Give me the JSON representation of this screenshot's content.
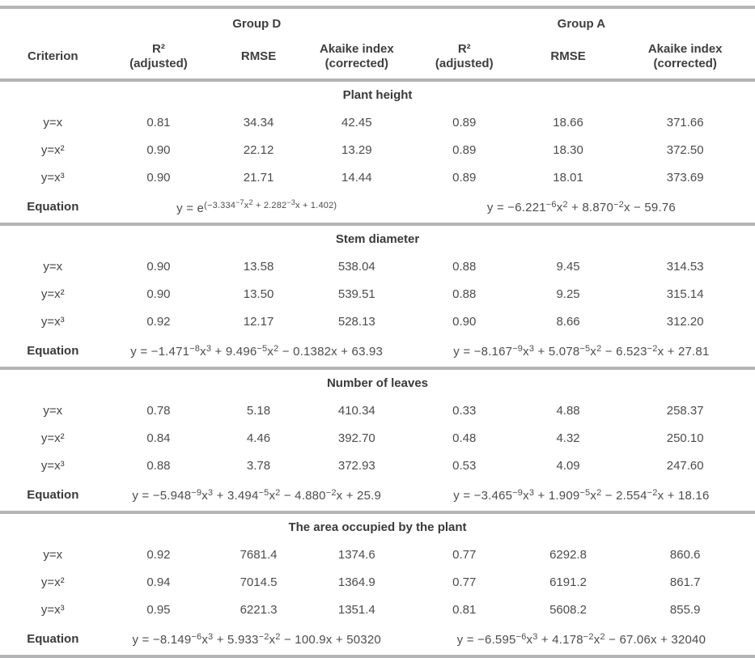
{
  "table": {
    "criterion_header": "Criterion",
    "equation_label": "Equation",
    "groups": [
      {
        "label": "Group D"
      },
      {
        "label": "Group A"
      }
    ],
    "col_headers": [
      {
        "top": "R²",
        "bottom": "(adjusted)"
      },
      {
        "top": "RMSE",
        "bottom": ""
      },
      {
        "top": "Akaike index",
        "bottom": "(corrected)"
      }
    ],
    "colors": {
      "rule": "#b2b4b6",
      "text": "#3e3e3e"
    },
    "sections": [
      {
        "title": "Plant height",
        "rows": [
          {
            "criterion": "y=x",
            "d": [
              "0.81",
              "34.34",
              "42.45"
            ],
            "a": [
              "0.89",
              "18.66",
              "371.66"
            ]
          },
          {
            "criterion": "y=x²",
            "d": [
              "0.90",
              "22.12",
              "13.29"
            ],
            "a": [
              "0.89",
              "18.30",
              "372.50"
            ]
          },
          {
            "criterion": "y=x³",
            "d": [
              "0.90",
              "21.71",
              "14.44"
            ],
            "a": [
              "0.89",
              "18.01",
              "373.69"
            ]
          }
        ],
        "equation_d": [
          [
            0,
            "y = e"
          ],
          [
            1,
            "(−3.334"
          ],
          [
            2,
            "−7"
          ],
          [
            1,
            "x"
          ],
          [
            2,
            "2"
          ],
          [
            1,
            " + 2.282"
          ],
          [
            2,
            "−3"
          ],
          [
            1,
            "x + 1.402)"
          ]
        ],
        "equation_a": [
          [
            0,
            "y = −6.221"
          ],
          [
            1,
            "−6"
          ],
          [
            0,
            "x"
          ],
          [
            1,
            "2"
          ],
          [
            0,
            " + 8.870"
          ],
          [
            1,
            "−2"
          ],
          [
            0,
            "x − 59.76"
          ]
        ]
      },
      {
        "title": "Stem diameter",
        "rows": [
          {
            "criterion": "y=x",
            "d": [
              "0.90",
              "13.58",
              "538.04"
            ],
            "a": [
              "0.88",
              "9.45",
              "314.53"
            ]
          },
          {
            "criterion": "y=x²",
            "d": [
              "0.90",
              "13.50",
              "539.51"
            ],
            "a": [
              "0.88",
              "9.25",
              "315.14"
            ]
          },
          {
            "criterion": "y=x³",
            "d": [
              "0.92",
              "12.17",
              "528.13"
            ],
            "a": [
              "0.90",
              "8.66",
              "312.20"
            ]
          }
        ],
        "equation_d": [
          [
            0,
            "y = −1.471"
          ],
          [
            1,
            "−8"
          ],
          [
            0,
            "x"
          ],
          [
            1,
            "3"
          ],
          [
            0,
            " + 9.496"
          ],
          [
            1,
            "−5"
          ],
          [
            0,
            "x"
          ],
          [
            1,
            "2"
          ],
          [
            0,
            " − 0.1382x + 63.93"
          ]
        ],
        "equation_a": [
          [
            0,
            "y = −8.167"
          ],
          [
            1,
            "−9"
          ],
          [
            0,
            "x"
          ],
          [
            1,
            "3"
          ],
          [
            0,
            " + 5.078"
          ],
          [
            1,
            "−5"
          ],
          [
            0,
            "x"
          ],
          [
            1,
            "2"
          ],
          [
            0,
            " − 6.523"
          ],
          [
            1,
            "−2"
          ],
          [
            0,
            "x + 27.81"
          ]
        ]
      },
      {
        "title": "Number of leaves",
        "rows": [
          {
            "criterion": "y=x",
            "d": [
              "0.78",
              "5.18",
              "410.34"
            ],
            "a": [
              "0.33",
              "4.88",
              "258.37"
            ]
          },
          {
            "criterion": "y=x²",
            "d": [
              "0.84",
              "4.46",
              "392.70"
            ],
            "a": [
              "0.48",
              "4.32",
              "250.10"
            ]
          },
          {
            "criterion": "y=x³",
            "d": [
              "0.88",
              "3.78",
              "372.93"
            ],
            "a": [
              "0.53",
              "4.09",
              "247.60"
            ]
          }
        ],
        "equation_d": [
          [
            0,
            "y = −5.948"
          ],
          [
            1,
            "−9"
          ],
          [
            0,
            "x"
          ],
          [
            1,
            "3"
          ],
          [
            0,
            " + 3.494"
          ],
          [
            1,
            "−5"
          ],
          [
            0,
            "x"
          ],
          [
            1,
            "2"
          ],
          [
            0,
            " − 4.880"
          ],
          [
            1,
            "−2"
          ],
          [
            0,
            "x + 25.9"
          ]
        ],
        "equation_a": [
          [
            0,
            "y = −3.465"
          ],
          [
            1,
            "−9"
          ],
          [
            0,
            "x"
          ],
          [
            1,
            "3"
          ],
          [
            0,
            " + 1.909"
          ],
          [
            1,
            "−5"
          ],
          [
            0,
            "x"
          ],
          [
            1,
            "2"
          ],
          [
            0,
            " − 2.554"
          ],
          [
            1,
            "−2"
          ],
          [
            0,
            "x + 18.16"
          ]
        ]
      },
      {
        "title": "The area occupied by the plant",
        "rows": [
          {
            "criterion": "y=x",
            "d": [
              "0.92",
              "7681.4",
              "1374.6"
            ],
            "a": [
              "0.77",
              "6292.8",
              "860.6"
            ]
          },
          {
            "criterion": "y=x²",
            "d": [
              "0.94",
              "7014.5",
              "1364.9"
            ],
            "a": [
              "0.77",
              "6191.2",
              "861.7"
            ]
          },
          {
            "criterion": "y=x³",
            "d": [
              "0.95",
              "6221.3",
              "1351.4"
            ],
            "a": [
              "0.81",
              "5608.2",
              "855.9"
            ]
          }
        ],
        "equation_d": [
          [
            0,
            "y = −8.149"
          ],
          [
            1,
            "−6"
          ],
          [
            0,
            "x"
          ],
          [
            1,
            "3"
          ],
          [
            0,
            " + 5.933"
          ],
          [
            1,
            "−2"
          ],
          [
            0,
            "x"
          ],
          [
            1,
            "2"
          ],
          [
            0,
            " − 100.9x + 50320"
          ]
        ],
        "equation_a": [
          [
            0,
            "y = −6.595"
          ],
          [
            1,
            "−6"
          ],
          [
            0,
            "x"
          ],
          [
            1,
            "3"
          ],
          [
            0,
            " + 4.178"
          ],
          [
            1,
            "−2"
          ],
          [
            0,
            "x"
          ],
          [
            1,
            "2"
          ],
          [
            0,
            " − 67.06x + 32040"
          ]
        ]
      }
    ]
  }
}
